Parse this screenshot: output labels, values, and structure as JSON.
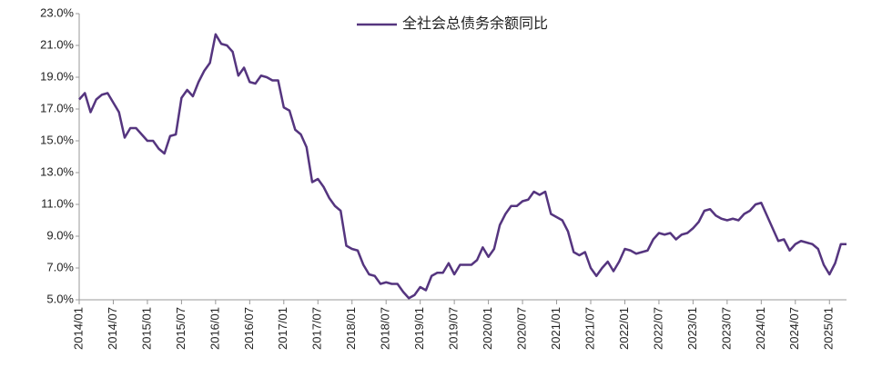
{
  "chart_data": {
    "type": "line",
    "categories": [
      "2014/01",
      null,
      null,
      null,
      null,
      null,
      "2014/07",
      null,
      null,
      null,
      null,
      null,
      "2015/01",
      null,
      null,
      null,
      null,
      null,
      "2015/07",
      null,
      null,
      null,
      null,
      null,
      "2016/01",
      null,
      null,
      null,
      null,
      null,
      "2016/07",
      null,
      null,
      null,
      null,
      null,
      "2017/01",
      null,
      null,
      null,
      null,
      null,
      "2017/07",
      null,
      null,
      null,
      null,
      null,
      "2018/01",
      null,
      null,
      null,
      null,
      null,
      "2018/07",
      null,
      null,
      null,
      null,
      null,
      "2019/01",
      null,
      null,
      null,
      null,
      null,
      "2019/07",
      null,
      null,
      null,
      null,
      null,
      "2020/01",
      null,
      null,
      null,
      null,
      null,
      "2020/07",
      null,
      null,
      null,
      null,
      null,
      "2021/01",
      null,
      null,
      null,
      null,
      null,
      "2021/07",
      null,
      null,
      null,
      null,
      null,
      "2022/01",
      null,
      null,
      null,
      null,
      null,
      "2022/07",
      null,
      null,
      null,
      null,
      null,
      "2023/01",
      null,
      null,
      null,
      null,
      null,
      "2023/07",
      null,
      null,
      null,
      null,
      null,
      "2024/01",
      null,
      null,
      null,
      null,
      null,
      "2024/07",
      null,
      null,
      null,
      null,
      null,
      "2025/01",
      null,
      null,
      null
    ],
    "series": [
      {
        "name": "全社会总债务余额同比",
        "color": "#55357f",
        "values": [
          17.6,
          18.0,
          16.8,
          17.6,
          17.9,
          18.0,
          17.4,
          16.8,
          15.2,
          15.8,
          15.8,
          15.4,
          15.0,
          15.0,
          14.5,
          14.2,
          15.3,
          15.4,
          17.7,
          18.2,
          17.8,
          18.7,
          19.4,
          19.9,
          21.7,
          21.1,
          21.0,
          20.6,
          19.1,
          19.6,
          18.7,
          18.6,
          19.1,
          19.0,
          18.8,
          18.8,
          17.1,
          16.9,
          15.7,
          15.4,
          14.6,
          12.4,
          12.6,
          12.1,
          11.4,
          10.9,
          10.6,
          8.4,
          8.2,
          8.1,
          7.2,
          6.6,
          6.5,
          6.0,
          6.1,
          6.0,
          6.0,
          5.5,
          5.1,
          5.3,
          5.8,
          5.6,
          6.5,
          6.7,
          6.7,
          7.3,
          6.6,
          7.2,
          7.2,
          7.2,
          7.5,
          8.3,
          7.7,
          8.2,
          9.7,
          10.4,
          10.9,
          10.9,
          11.2,
          11.3,
          11.8,
          11.6,
          11.8,
          10.4,
          10.2,
          10.0,
          9.3,
          8.0,
          7.8,
          8.0,
          7.0,
          6.5,
          7.0,
          7.4,
          6.8,
          7.4,
          8.2,
          8.1,
          7.9,
          8.0,
          8.1,
          8.8,
          9.2,
          9.1,
          9.2,
          8.8,
          9.1,
          9.2,
          9.5,
          9.9,
          10.6,
          10.7,
          10.3,
          10.1,
          10.0,
          10.1,
          10.0,
          10.4,
          10.6,
          11.0,
          11.1,
          10.3,
          9.5,
          8.7,
          8.8,
          8.1,
          8.5,
          8.7,
          8.6,
          8.5,
          8.2,
          7.2,
          6.6,
          7.3,
          8.5,
          8.5
        ]
      }
    ],
    "ylim": [
      5,
      23
    ],
    "yticks": [
      {
        "value": 5,
        "label": "5.0%"
      },
      {
        "value": 7,
        "label": "7.0%"
      },
      {
        "value": 9,
        "label": "9.0%"
      },
      {
        "value": 11,
        "label": "11.0%"
      },
      {
        "value": 13,
        "label": "13.0%"
      },
      {
        "value": 15,
        "label": "15.0%"
      },
      {
        "value": 17,
        "label": "17.0%"
      },
      {
        "value": 19,
        "label": "19.0%"
      },
      {
        "value": 21,
        "label": "21.0%"
      },
      {
        "value": 23,
        "label": "23.0%"
      }
    ],
    "grid": false,
    "legend": "top"
  }
}
